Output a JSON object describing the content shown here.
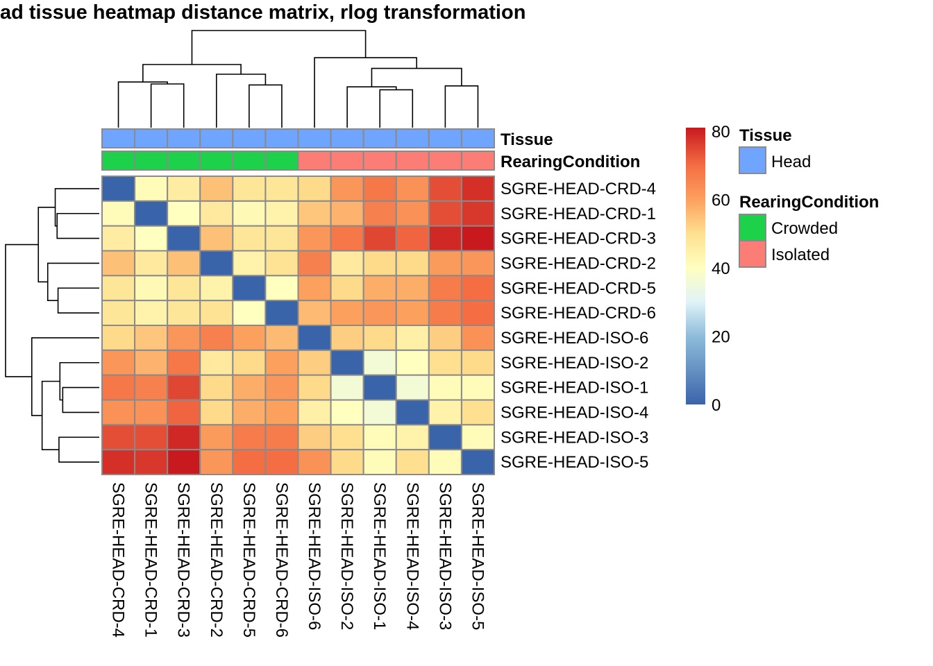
{
  "chart_data": {
    "type": "heatmap",
    "title": "ad tissue heatmap distance matrix, rlog transformation",
    "samples": [
      "SGRE-HEAD-CRD-4",
      "SGRE-HEAD-CRD-1",
      "SGRE-HEAD-CRD-3",
      "SGRE-HEAD-CRD-2",
      "SGRE-HEAD-CRD-5",
      "SGRE-HEAD-CRD-6",
      "SGRE-HEAD-ISO-6",
      "SGRE-HEAD-ISO-2",
      "SGRE-HEAD-ISO-1",
      "SGRE-HEAD-ISO-4",
      "SGRE-HEAD-ISO-3",
      "SGRE-HEAD-ISO-5"
    ],
    "values": [
      [
        0,
        41,
        46,
        55,
        48,
        48,
        51,
        62,
        68,
        63,
        74,
        78
      ],
      [
        41,
        0,
        40,
        47,
        42,
        44,
        54,
        57,
        66,
        63,
        74,
        77
      ],
      [
        46,
        40,
        0,
        55,
        48,
        48,
        62,
        68,
        75,
        71,
        79,
        82
      ],
      [
        55,
        47,
        55,
        0,
        44,
        49,
        66,
        47,
        51,
        51,
        61,
        62
      ],
      [
        48,
        42,
        48,
        44,
        0,
        40,
        60,
        51,
        58,
        58,
        67,
        70
      ],
      [
        48,
        44,
        48,
        49,
        40,
        0,
        56,
        60,
        62,
        60,
        67,
        70
      ],
      [
        51,
        54,
        62,
        66,
        60,
        56,
        0,
        53,
        51,
        45,
        53,
        63
      ],
      [
        62,
        57,
        68,
        47,
        51,
        60,
        53,
        0,
        36,
        40,
        50,
        51
      ],
      [
        68,
        66,
        75,
        51,
        58,
        62,
        51,
        36,
        0,
        36,
        41,
        41
      ],
      [
        63,
        63,
        71,
        51,
        58,
        60,
        45,
        40,
        36,
        0,
        44,
        50
      ],
      [
        74,
        74,
        79,
        61,
        67,
        67,
        53,
        50,
        41,
        44,
        0,
        41
      ],
      [
        78,
        77,
        82,
        62,
        70,
        70,
        63,
        51,
        41,
        50,
        41,
        0
      ]
    ],
    "colorbar": {
      "ticks": [
        "0",
        "20",
        "40",
        "60",
        "80"
      ],
      "range": [
        0,
        81
      ],
      "colors": [
        "#3A64AA",
        "#8FBCDB",
        "#E0F3F8",
        "#FFFFBF",
        "#FEE090",
        "#FCA05E",
        "#F46D43",
        "#C8191E"
      ]
    },
    "annotations": {
      "Tissue": {
        "label": "Tissue",
        "values": [
          "Head",
          "Head",
          "Head",
          "Head",
          "Head",
          "Head",
          "Head",
          "Head",
          "Head",
          "Head",
          "Head",
          "Head"
        ]
      },
      "RearingCondition": {
        "label": "RearingCondition",
        "values": [
          "Crowded",
          "Crowded",
          "Crowded",
          "Crowded",
          "Crowded",
          "Crowded",
          "Isolated",
          "Isolated",
          "Isolated",
          "Isolated",
          "Isolated",
          "Isolated"
        ]
      }
    },
    "legend": {
      "tissue_title": "Tissue",
      "tissue_items": [
        {
          "label": "Head",
          "color": "#6FA4FF"
        }
      ],
      "rearing_title": "RearingCondition",
      "rearing_items": [
        {
          "label": "Crowded",
          "color": "#1DD14A"
        },
        {
          "label": "Isolated",
          "color": "#FC7D75"
        }
      ]
    },
    "clustering": "hierarchical, rows and columns"
  }
}
